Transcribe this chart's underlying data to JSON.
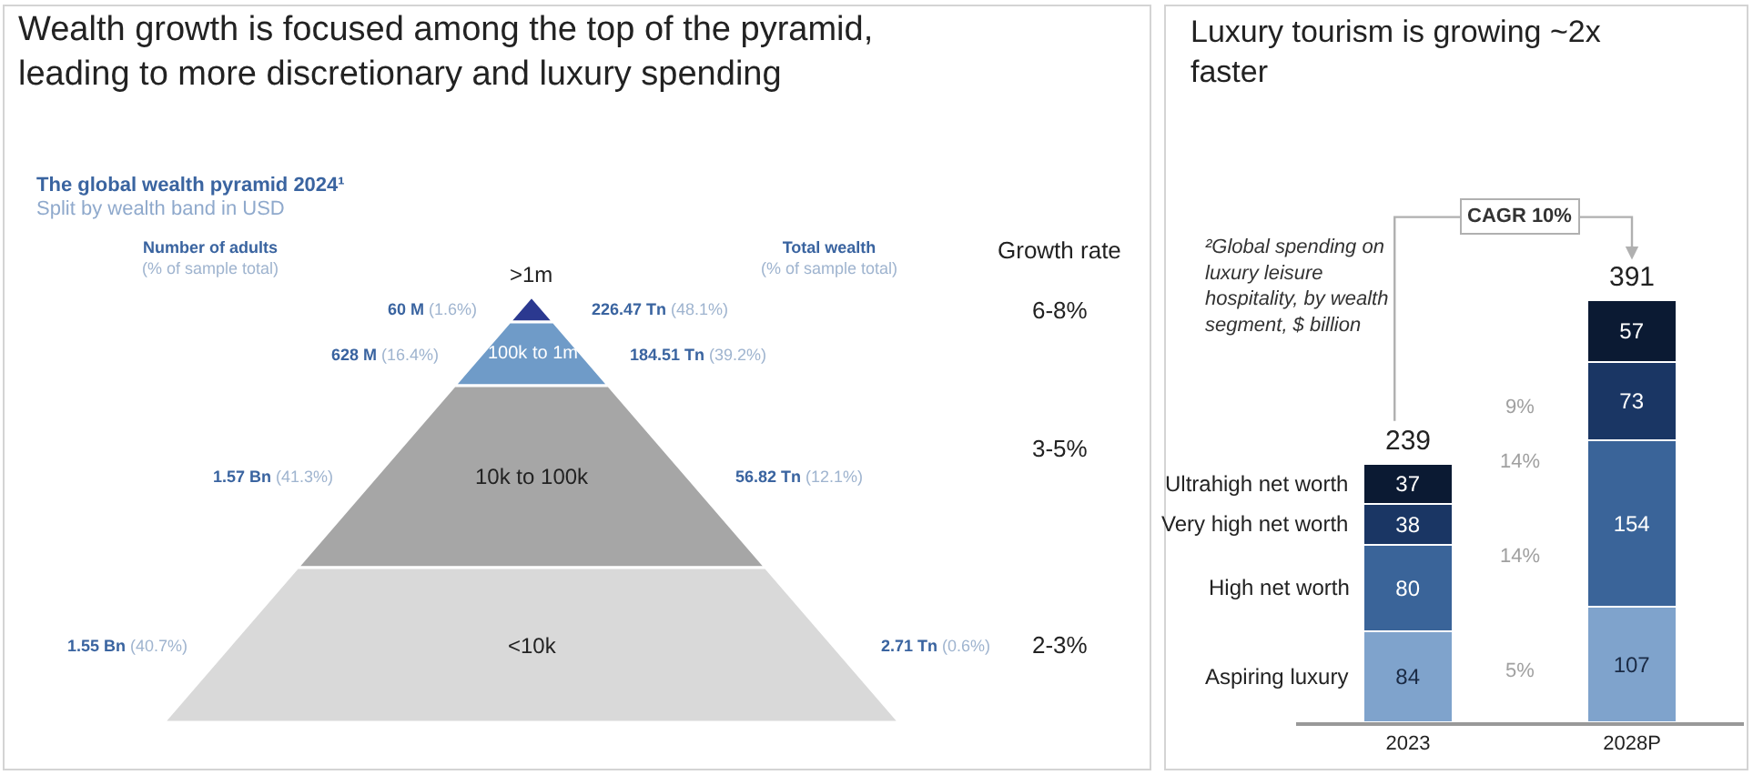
{
  "chart_data": [
    {
      "type": "other",
      "title": "Wealth growth is focused among the top of the pyramid,\nleading to more discretionary and luxury spending",
      "subtitle": "The global wealth pyramid 2024¹",
      "annotations": [
        "Split by wealth band in USD",
        "Number of adults\n(% of sample total)",
        "60 M (1.6%)",
        "628 M (16.4%)",
        "1.57 Bn (41.3%)",
        "1.55 Bn (40.7%)",
        "Total wealth\n(% of sample total)",
        "226.47 Tn (48.1%)",
        "184.51 Tn (39.2%)",
        "56.82 Tn (12.1%)",
        "2.71 Tn (0.6%)",
        "Growth rate",
        "6-8%",
        "3-5%",
        "2-3%"
      ],
      "categories": [
        ">1m",
        "100k to 1m",
        "10k to 100k",
        "<10k"
      ],
      "colors": [
        "#2b3990",
        "#6f9bc8",
        "#a6a6a6",
        "#d9d9d9"
      ]
    },
    {
      "type": "bar",
      "stacked": true,
      "title": "Luxury tourism is growing ~2x\nfaster",
      "subtitle": "²Global spending on\nluxury leisure\nhospitality, by wealth\nsegment, $ billion",
      "categories": [
        "2023",
        "2028P"
      ],
      "tick_labels": "x",
      "data_labels": true,
      "totals": [
        "239",
        "391"
      ],
      "annotations": [
        "CAGR 10%",
        "5%",
        "14%",
        "14%",
        "9%"
      ],
      "series": [
        {
          "name": "Aspiring luxury",
          "color": "#7fa3cc",
          "values": [
            84,
            107
          ]
        },
        {
          "name": "High net worth",
          "color": "#3a6499",
          "values": [
            80,
            154
          ]
        },
        {
          "name": "Very high net worth",
          "color": "#1a3664",
          "values": [
            38,
            73
          ]
        },
        {
          "name": "Ultrahigh net worth",
          "color": "#0b1a33",
          "values": [
            37,
            57
          ]
        }
      ]
    }
  ]
}
